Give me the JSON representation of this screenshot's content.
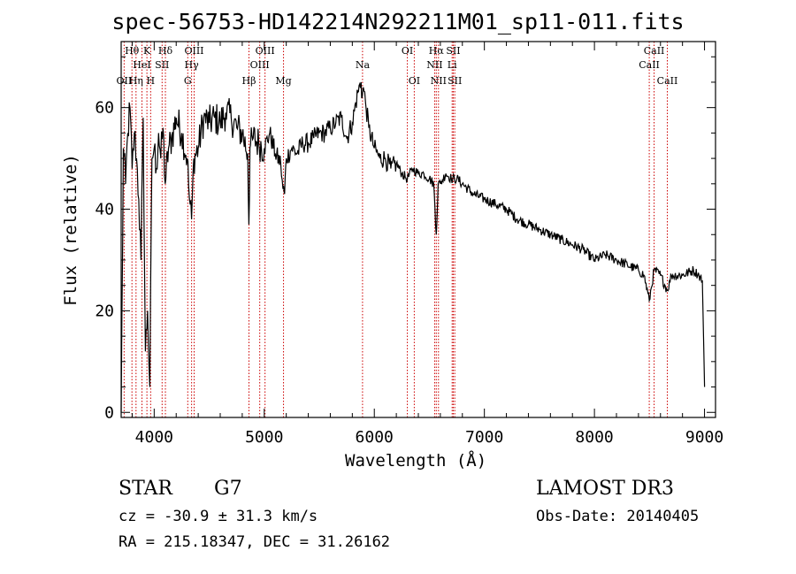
{
  "chart_data": {
    "type": "line",
    "title": "spec-56753-HD142214N292211M01_sp11-011.fits",
    "xlabel": "Wavelength (Å)",
    "ylabel": "Flux (relative)",
    "xlim": [
      3700,
      9100
    ],
    "ylim": [
      -1,
      73
    ],
    "xticks": [
      4000,
      5000,
      6000,
      7000,
      8000,
      9000
    ],
    "yticks": [
      0,
      20,
      40,
      60
    ],
    "grid": false,
    "series": [
      {
        "name": "spectrum",
        "x": [
          3700,
          3720,
          3740,
          3760,
          3780,
          3800,
          3820,
          3840,
          3860,
          3880,
          3900,
          3920,
          3940,
          3960,
          3980,
          4000,
          4020,
          4040,
          4060,
          4080,
          4100,
          4130,
          4160,
          4200,
          4250,
          4300,
          4320,
          4340,
          4360,
          4400,
          4450,
          4500,
          4550,
          4600,
          4650,
          4700,
          4750,
          4800,
          4850,
          4860,
          4870,
          4900,
          4950,
          5000,
          5050,
          5100,
          5150,
          5170,
          5185,
          5200,
          5250,
          5300,
          5350,
          5400,
          5450,
          5500,
          5550,
          5600,
          5650,
          5700,
          5750,
          5800,
          5850,
          5880,
          5890,
          5900,
          5920,
          5950,
          6000,
          6050,
          6100,
          6150,
          6200,
          6250,
          6300,
          6350,
          6400,
          6450,
          6500,
          6540,
          6563,
          6580,
          6600,
          6650,
          6700,
          6750,
          6800,
          6900,
          7000,
          7100,
          7200,
          7300,
          7400,
          7500,
          7600,
          7700,
          7800,
          7900,
          8000,
          8100,
          8200,
          8300,
          8400,
          8450,
          8498,
          8542,
          8600,
          8662,
          8700,
          8800,
          8900,
          8950,
          8980,
          9000
        ],
        "y": [
          0,
          52,
          45,
          55,
          60,
          48,
          55,
          50,
          42,
          30,
          58,
          12,
          20,
          5,
          50,
          52,
          48,
          55,
          50,
          56,
          45,
          52,
          54,
          58,
          55,
          50,
          42,
          38,
          50,
          52,
          58,
          57,
          58,
          57,
          59,
          58,
          56,
          55,
          51,
          37,
          52,
          54,
          53,
          52,
          55,
          51,
          49,
          44,
          43,
          50,
          52,
          51,
          53,
          53,
          54,
          55,
          55,
          56,
          57,
          58,
          54,
          57,
          63,
          65,
          62,
          64,
          61,
          56,
          52,
          50,
          50,
          48,
          49,
          47,
          46,
          48,
          47,
          47,
          46,
          45,
          35,
          45,
          45,
          47,
          46,
          46,
          45,
          43,
          42,
          41,
          40,
          38,
          37,
          36,
          35,
          34,
          33,
          32,
          30,
          31,
          30,
          29,
          28,
          27,
          22,
          28,
          27,
          24,
          27,
          27,
          28,
          27,
          26,
          5
        ]
      }
    ],
    "lines": [
      {
        "name": "OII",
        "wave": 3727,
        "row": 2
      },
      {
        "name": "Hθ",
        "wave": 3798,
        "row": 0
      },
      {
        "name": "Hη",
        "wave": 3835,
        "row": 2
      },
      {
        "name": "HeI",
        "wave": 3889,
        "row": 1
      },
      {
        "name": "K",
        "wave": 3934,
        "row": 0
      },
      {
        "name": "H",
        "wave": 3968,
        "row": 2
      },
      {
        "name": "SII",
        "wave": 4072,
        "row": 1
      },
      {
        "name": "Hδ",
        "wave": 4102,
        "row": 0
      },
      {
        "name": "G",
        "wave": 4305,
        "row": 2
      },
      {
        "name": "Hγ",
        "wave": 4340,
        "row": 1
      },
      {
        "name": "OIII",
        "wave": 4363,
        "row": 0
      },
      {
        "name": "Hβ",
        "wave": 4861,
        "row": 2
      },
      {
        "name": "OIII",
        "wave": 4959,
        "row": 1
      },
      {
        "name": "OIII",
        "wave": 5007,
        "row": 0
      },
      {
        "name": "Mg",
        "wave": 5175,
        "row": 2
      },
      {
        "name": "Na",
        "wave": 5893,
        "row": 1
      },
      {
        "name": "OI",
        "wave": 6300,
        "row": 0
      },
      {
        "name": "OI",
        "wave": 6363,
        "row": 2
      },
      {
        "name": "NII",
        "wave": 6548,
        "row": 1
      },
      {
        "name": "Hα",
        "wave": 6563,
        "row": 0
      },
      {
        "name": "NII",
        "wave": 6583,
        "row": 2
      },
      {
        "name": "Li",
        "wave": 6707,
        "row": 1
      },
      {
        "name": "SII",
        "wave": 6717,
        "row": 0
      },
      {
        "name": "SII",
        "wave": 6731,
        "row": 2
      },
      {
        "name": "CaII",
        "wave": 8498,
        "row": 1
      },
      {
        "name": "CaII",
        "wave": 8542,
        "row": 0
      },
      {
        "name": "CaII",
        "wave": 8662,
        "row": 2
      }
    ]
  },
  "info": {
    "class": "STAR",
    "subclass": "G7",
    "survey": "LAMOST DR3",
    "cz": "cz = -30.9 ± 31.3 km/s",
    "obs_date": "Obs-Date: 20140405",
    "radec": "RA = 215.18347, DEC =  31.26162"
  },
  "colors": {
    "frame": "#000000",
    "spectrum": "#000000",
    "line_marker": "#cc0000"
  }
}
